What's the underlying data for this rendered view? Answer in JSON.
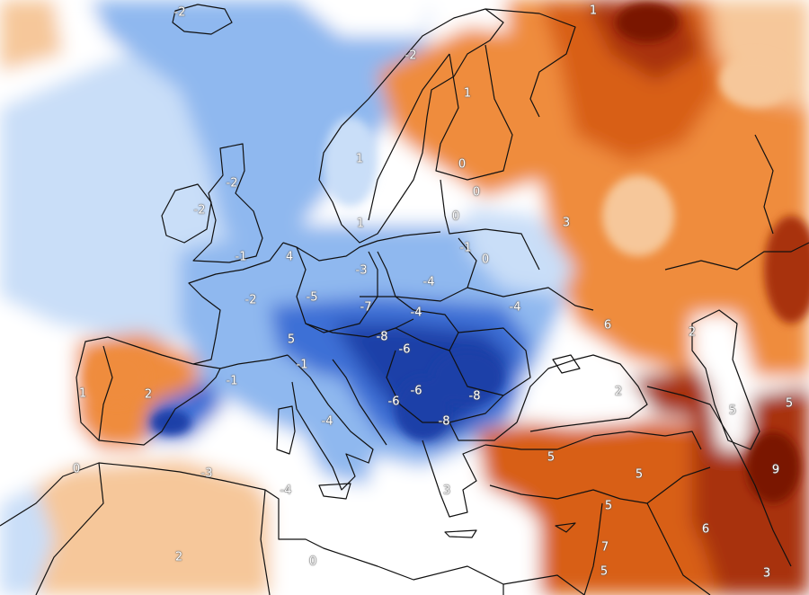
{
  "map": {
    "colors": {
      "strong_cold": "#1f3fa8",
      "cold": "#3d6fd6",
      "cool": "#8fb8ef",
      "light_cool": "#c9def8",
      "neutral": "#ffffff",
      "light_warm": "#f6c79a",
      "warm": "#ef8c3e",
      "hot": "#d85f17",
      "very_hot": "#a8330a",
      "extreme_hot": "#7a1606",
      "border": "#111111"
    },
    "labels": {
      "l1": "-2",
      "l2": "-2",
      "l3": "1",
      "l4": "1",
      "l5": "-2",
      "l6": "0",
      "l7": "1",
      "l8": "0",
      "l9": "-2",
      "l10": "0",
      "l11": "1",
      "l12": "-1",
      "l13": "0",
      "l14": "3",
      "l15": "-1",
      "l16": "4",
      "l17": "-3",
      "l18": "-4",
      "l19": "-2",
      "l20": "-5",
      "l21": "-7",
      "l22": "-4",
      "l23": "-4",
      "l24": "6",
      "l25": "5",
      "l26": "-8",
      "l27": "-6",
      "l28": "2",
      "l29": "-1",
      "l30": "2",
      "l31": "-1",
      "l32": "1",
      "l33": "-6",
      "l34": "-6",
      "l35": "-8",
      "l36": "2",
      "l37": "5",
      "l38": "5",
      "l39": "-4",
      "l40": "-8",
      "l41": "5",
      "l42": "5",
      "l43": "0",
      "l44": "-3",
      "l45": "9",
      "l46": "-4",
      "l47": "3",
      "l48": "5",
      "l49": "7",
      "l50": "6",
      "l51": "2",
      "l52": "0",
      "l53": "5",
      "l54": "3"
    }
  }
}
